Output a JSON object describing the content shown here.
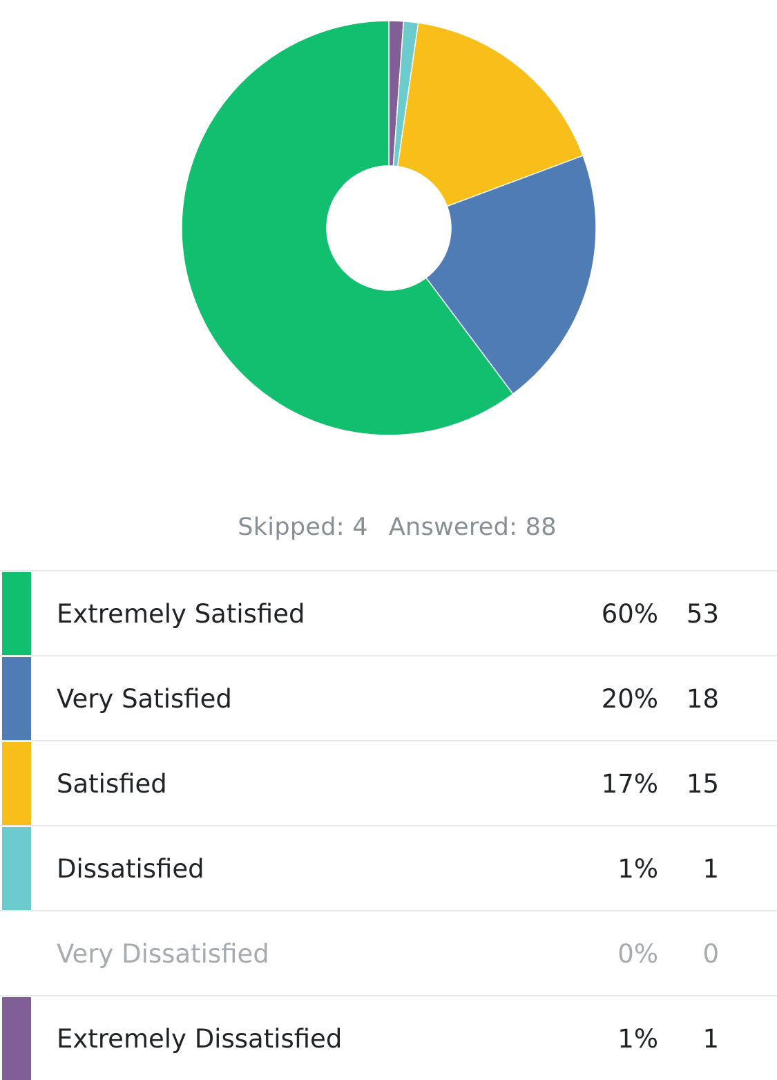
{
  "chart_data": {
    "type": "pie",
    "style": "donut",
    "legend_placement": "bottom",
    "categories": [
      "Extremely Satisfied",
      "Very Satisfied",
      "Satisfied",
      "Dissatisfied",
      "Very Dissatisfied",
      "Extremely Dissatisfied"
    ],
    "values": [
      53,
      18,
      15,
      1,
      0,
      1
    ],
    "percent_labels": [
      "60%",
      "20%",
      "17%",
      "1%",
      "0%",
      "1%"
    ],
    "count_labels": [
      "53",
      "18",
      "15",
      "1",
      "0",
      "1"
    ],
    "colors": [
      "#12bf6e",
      "#507cb6",
      "#f8bf1b",
      "#6bcbcd",
      "#a6abb0",
      "#7f5f96"
    ],
    "slice_order_clockwise": [
      5,
      3,
      2,
      1,
      0
    ]
  },
  "summary": {
    "skipped": "Skipped: 4",
    "answered": "Answered: 88"
  }
}
